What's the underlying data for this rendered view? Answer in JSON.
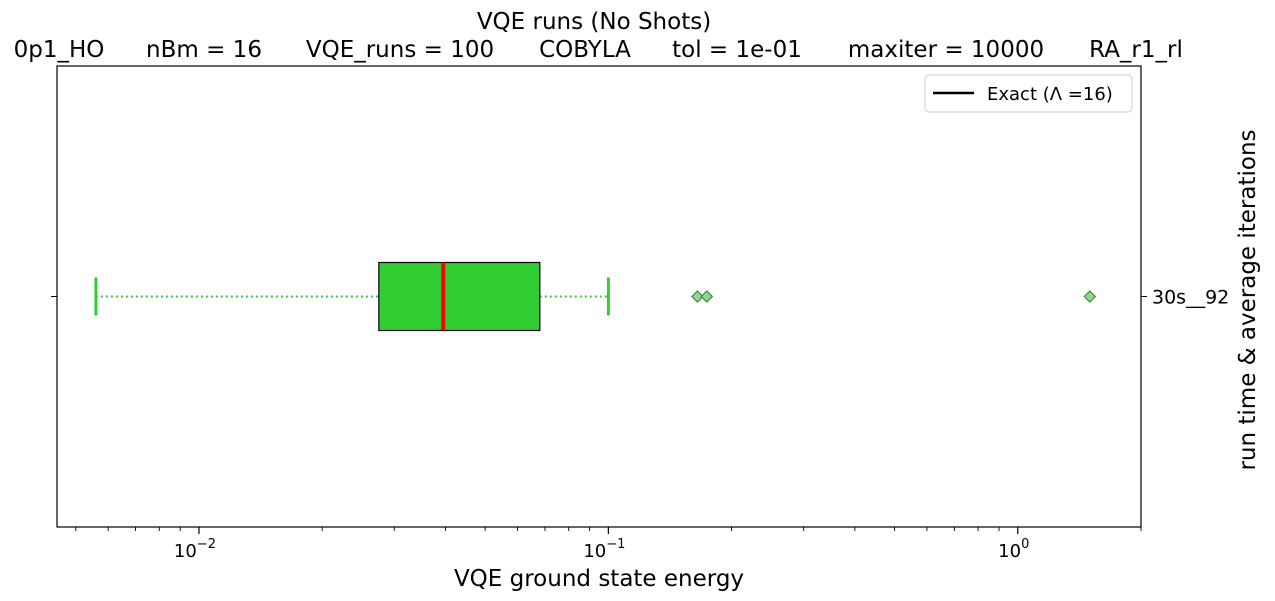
{
  "chart_data": {
    "type": "boxplot",
    "orientation": "horizontal",
    "title": "VQE runs (No Shots)",
    "subtitle_parts": [
      "0p1_HO",
      "nBm = 16",
      "VQE_runs = 100",
      "COBYLA",
      "tol = 1e-01",
      "maxiter = 10000",
      "RA_r1_rl"
    ],
    "xlabel": "VQE ground state energy",
    "ylabel": "run time & average iterations",
    "xscale": "log",
    "xlim": [
      0.0045,
      2.0
    ],
    "x_ticks": [
      {
        "value": 0.01,
        "base": "10",
        "exp": "−2"
      },
      {
        "value": 0.1,
        "base": "10",
        "exp": "−1"
      },
      {
        "value": 1,
        "base": "10",
        "exp": "0"
      }
    ],
    "categories": [
      "30s__92"
    ],
    "boxes": [
      {
        "category": "30s__92",
        "whisker_low": 0.0056,
        "q1": 0.0275,
        "median": 0.0395,
        "q3": 0.068,
        "whisker_high": 0.1,
        "outliers": [
          0.165,
          0.174,
          1.5
        ]
      }
    ],
    "legend": {
      "position": "upper right",
      "entries": [
        {
          "label": "Exact (Λ =16)",
          "color": "#000000"
        }
      ]
    },
    "colors": {
      "box_fill": "#32cd32",
      "box_edge": "#000000",
      "median": "#ff0000",
      "whisker": "#32cd32",
      "outlier_fill": "#90d890",
      "outlier_edge": "#3a8a3a"
    }
  }
}
